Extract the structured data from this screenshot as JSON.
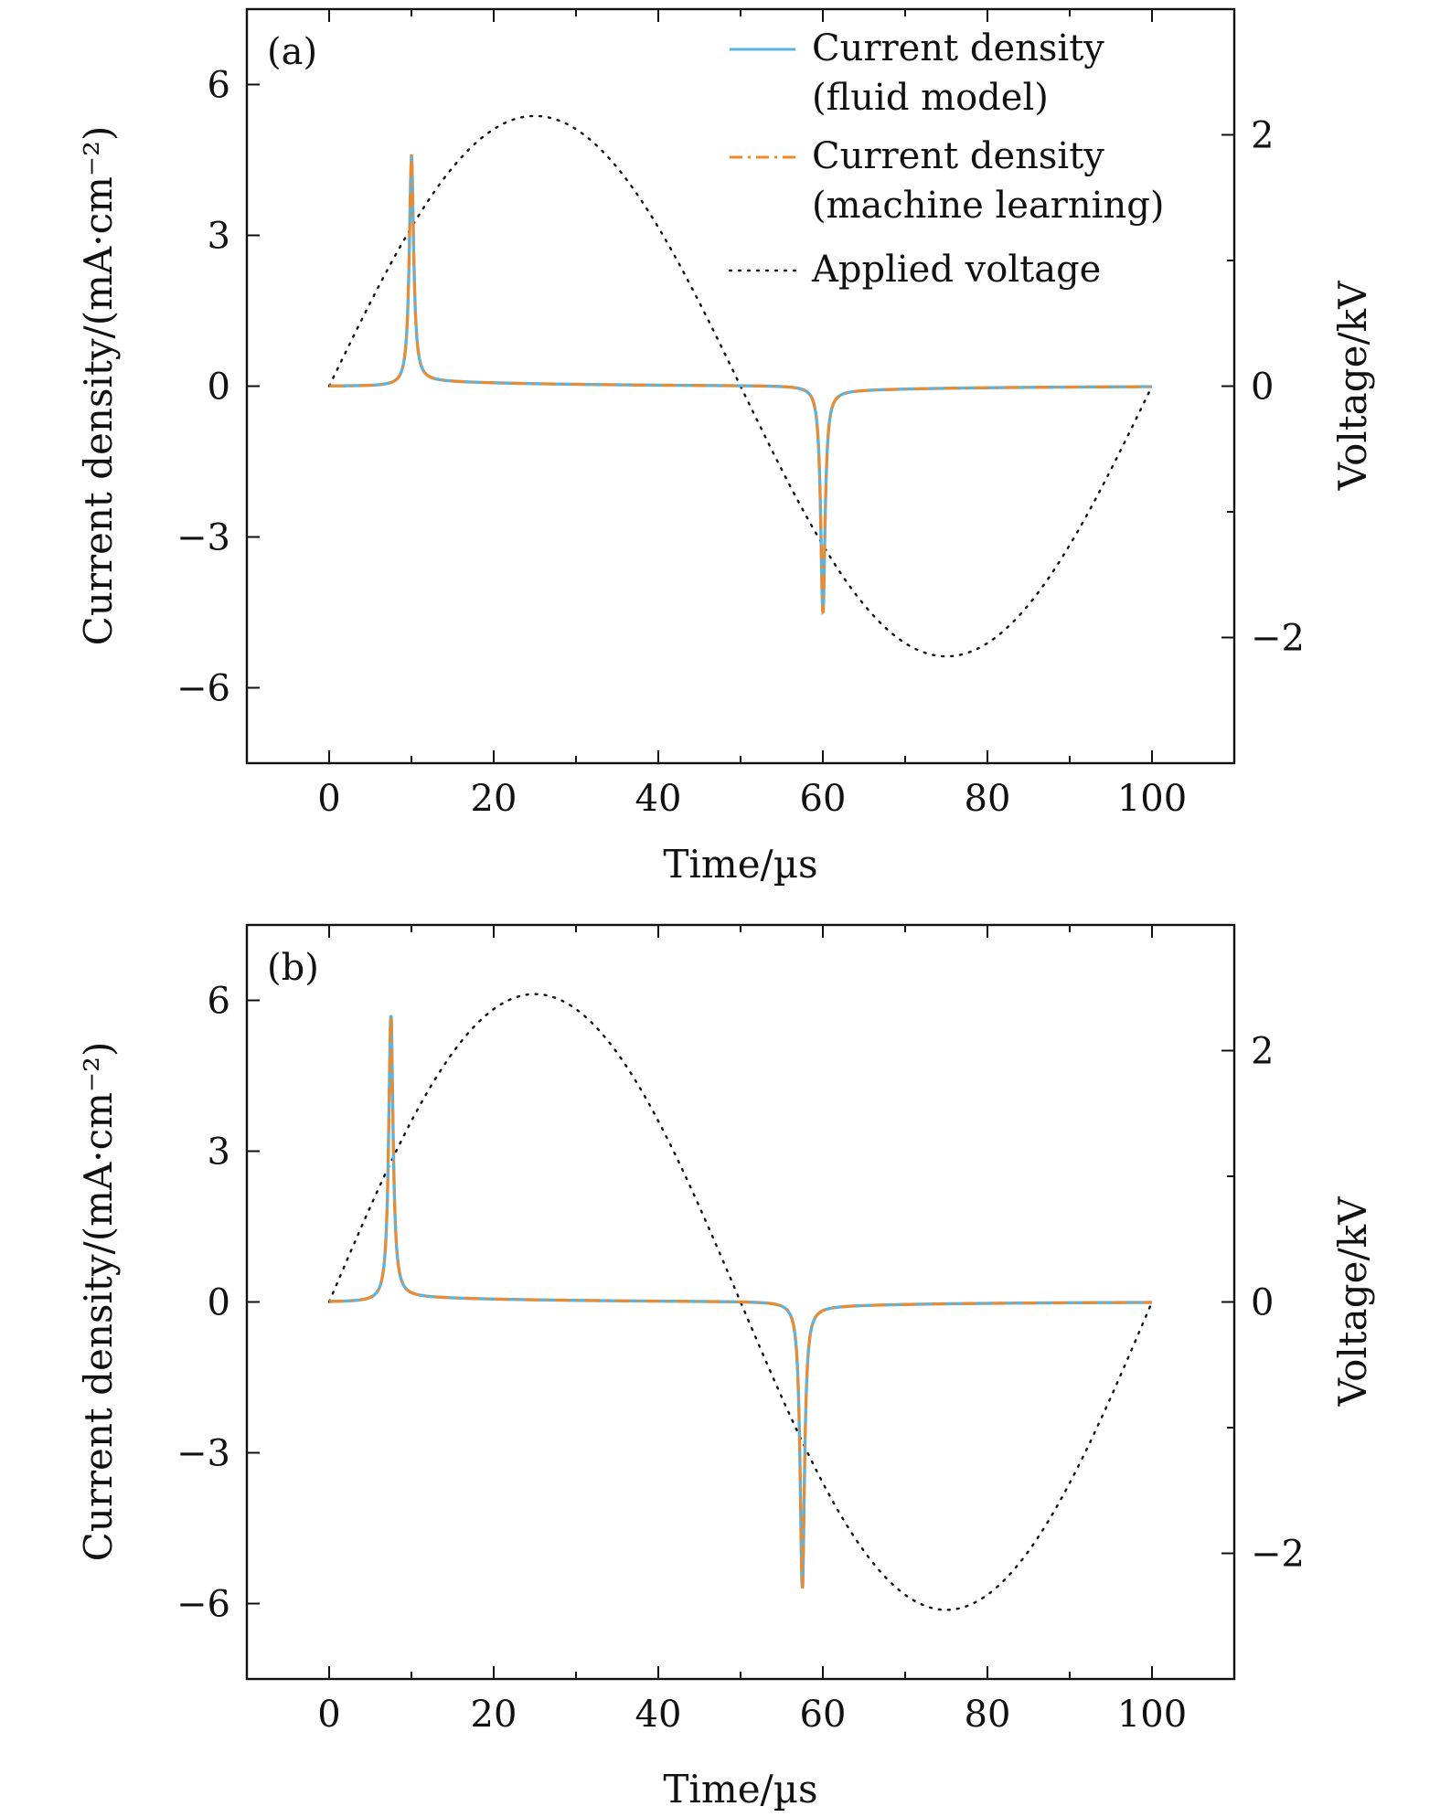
{
  "chart_data": [
    {
      "type": "line",
      "panel_label": "(a)",
      "xlabel": "Time/µs",
      "ylabel": "Current density/(mA·cm⁻²)",
      "y2label": "Voltage/kV",
      "xlim": [
        -10,
        110
      ],
      "ylim": [
        -7.5,
        7.5
      ],
      "y2lim": [
        -3,
        3
      ],
      "xticks": [
        0,
        20,
        40,
        60,
        80,
        100
      ],
      "xtick_labels": [
        "0",
        "20",
        "40",
        "60",
        "80",
        "100"
      ],
      "yticks": [
        6,
        3,
        0,
        -3,
        -6
      ],
      "ytick_labels": [
        "6",
        "3",
        "0",
        "−3",
        "−6"
      ],
      "y2ticks": [
        2,
        0,
        -2
      ],
      "y2tick_labels": [
        "2",
        "0",
        "−2"
      ],
      "legend": {
        "position": "top-right",
        "entries": [
          {
            "line1": "Current density",
            "line2": "(fluid model)",
            "style": "solid",
            "color": "#5bb4e0"
          },
          {
            "line1": "Current density",
            "line2": "(machine learning)",
            "style": "dashdot",
            "color": "#ee8a2c"
          },
          {
            "line1": "Applied voltage",
            "line2": "",
            "style": "dotted",
            "color": "#111111"
          }
        ]
      },
      "series": [
        {
          "name": "Current density (fluid model)",
          "axis": "left",
          "color": "#5bb4e0",
          "peak_time": 10,
          "peak_value": 4.5,
          "neg_peak_time": 60,
          "neg_peak_value": -4.5
        },
        {
          "name": "Current density (machine learning)",
          "axis": "left",
          "color": "#ee8a2c",
          "peak_time": 10,
          "peak_value": 4.5,
          "neg_peak_time": 60,
          "neg_peak_value": -4.5
        },
        {
          "name": "Applied voltage",
          "axis": "right",
          "color": "#111111",
          "amplitude_kV": 2.15,
          "period_us": 100,
          "x_range": [
            0,
            100
          ]
        }
      ]
    },
    {
      "type": "line",
      "panel_label": "(b)",
      "xlabel": "Time/µs",
      "ylabel": "Current density/(mA·cm⁻²)",
      "y2label": "Voltage/kV",
      "xlim": [
        -10,
        110
      ],
      "ylim": [
        -7.5,
        7.5
      ],
      "y2lim": [
        -3,
        3
      ],
      "xticks": [
        0,
        20,
        40,
        60,
        80,
        100
      ],
      "xtick_labels": [
        "0",
        "20",
        "40",
        "60",
        "80",
        "100"
      ],
      "yticks": [
        6,
        3,
        0,
        -3,
        -6
      ],
      "ytick_labels": [
        "6",
        "3",
        "0",
        "−3",
        "−6"
      ],
      "y2ticks": [
        2,
        0,
        -2
      ],
      "y2tick_labels": [
        "2",
        "0",
        "−2"
      ],
      "series": [
        {
          "name": "Current density (fluid model)",
          "axis": "left",
          "color": "#5bb4e0",
          "peak_time": 7.5,
          "peak_value": 5.7,
          "neg_peak_time": 57.5,
          "neg_peak_value": -5.7
        },
        {
          "name": "Current density (machine learning)",
          "axis": "left",
          "color": "#ee8a2c",
          "peak_time": 7.5,
          "peak_value": 5.7,
          "neg_peak_time": 57.5,
          "neg_peak_value": -5.7
        },
        {
          "name": "Applied voltage",
          "axis": "right",
          "color": "#111111",
          "amplitude_kV": 2.45,
          "period_us": 100,
          "x_range": [
            0,
            100
          ]
        }
      ]
    }
  ]
}
